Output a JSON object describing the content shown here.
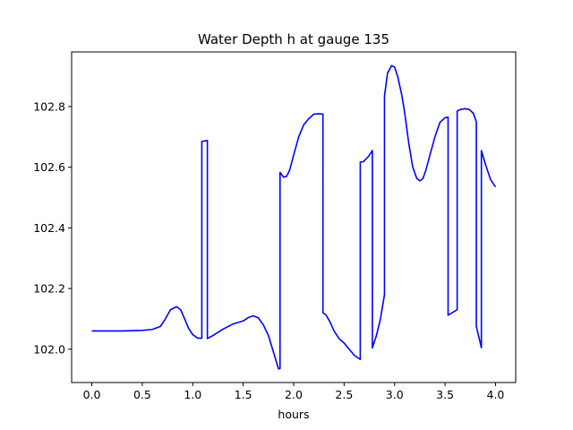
{
  "chart_data": {
    "type": "line",
    "title": "Water Depth h at gauge 135",
    "xlabel": "hours",
    "ylabel": "",
    "xlim": [
      -0.2,
      4.2
    ],
    "ylim": [
      101.89,
      102.98
    ],
    "xticks": [
      0.0,
      0.5,
      1.0,
      1.5,
      2.0,
      2.5,
      3.0,
      3.5,
      4.0
    ],
    "xtick_labels": [
      "0.0",
      "0.5",
      "1.0",
      "1.5",
      "2.0",
      "2.5",
      "3.0",
      "3.5",
      "4.0"
    ],
    "yticks": [
      102.0,
      102.2,
      102.4,
      102.6,
      102.8
    ],
    "ytick_labels": [
      "102.0",
      "102.2",
      "102.4",
      "102.6",
      "102.8"
    ],
    "grid": false,
    "series_color": "#0000ff",
    "series": [
      {
        "x": [
          0.0,
          0.3,
          0.5,
          0.6,
          0.68,
          0.72,
          0.78,
          0.84,
          0.88,
          0.92,
          0.96,
          1.0,
          1.05,
          1.09,
          1.09,
          1.145,
          1.145,
          1.2,
          1.3,
          1.4,
          1.5,
          1.55,
          1.6,
          1.65,
          1.7,
          1.75,
          1.8,
          1.85,
          1.865,
          1.865,
          1.9,
          1.93,
          1.96,
          2.0,
          2.05,
          2.1,
          2.15,
          2.2,
          2.25,
          2.29,
          2.29,
          2.32,
          2.36,
          2.4,
          2.45,
          2.5,
          2.55,
          2.6,
          2.66,
          2.66,
          2.69,
          2.74,
          2.78,
          2.78,
          2.82,
          2.86,
          2.9,
          2.9,
          2.93,
          2.97,
          3.0,
          3.03,
          3.07,
          3.1,
          3.14,
          3.18,
          3.22,
          3.25,
          3.28,
          3.31,
          3.35,
          3.4,
          3.45,
          3.5,
          3.53,
          3.53,
          3.57,
          3.62,
          3.62,
          3.65,
          3.7,
          3.74,
          3.78,
          3.81,
          3.81,
          3.86,
          3.86,
          3.9,
          3.95,
          4.0
        ],
        "y": [
          102.06,
          102.06,
          102.062,
          102.065,
          102.075,
          102.095,
          102.13,
          102.14,
          102.13,
          102.1,
          102.068,
          102.048,
          102.036,
          102.036,
          102.685,
          102.688,
          102.035,
          102.045,
          102.066,
          102.083,
          102.093,
          102.104,
          102.11,
          102.103,
          102.08,
          102.045,
          101.99,
          101.935,
          101.936,
          102.583,
          102.567,
          102.57,
          102.59,
          102.64,
          102.7,
          102.74,
          102.76,
          102.775,
          102.776,
          102.775,
          102.12,
          102.113,
          102.09,
          102.06,
          102.035,
          102.02,
          102.0,
          101.98,
          101.966,
          102.617,
          102.618,
          102.635,
          102.655,
          102.004,
          102.045,
          102.1,
          102.18,
          102.835,
          102.91,
          102.935,
          102.93,
          102.9,
          102.84,
          102.78,
          102.68,
          102.6,
          102.563,
          102.555,
          102.562,
          102.59,
          102.64,
          102.7,
          102.748,
          102.763,
          102.765,
          102.112,
          102.12,
          102.13,
          102.785,
          102.79,
          102.793,
          102.79,
          102.778,
          102.75,
          102.075,
          102.005,
          102.655,
          102.61,
          102.56,
          102.535
        ]
      }
    ]
  }
}
